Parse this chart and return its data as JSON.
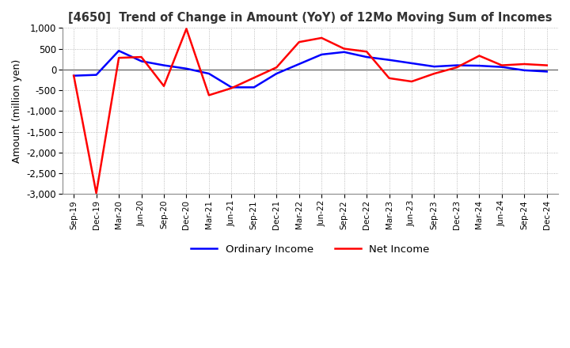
{
  "title": "[4650]  Trend of Change in Amount (YoY) of 12Mo Moving Sum of Incomes",
  "ylabel": "Amount (million yen)",
  "x_labels": [
    "Sep-19",
    "Dec-19",
    "Mar-20",
    "Jun-20",
    "Sep-20",
    "Dec-20",
    "Mar-21",
    "Jun-21",
    "Sep-21",
    "Dec-21",
    "Mar-22",
    "Jun-22",
    "Sep-22",
    "Dec-22",
    "Mar-23",
    "Jun-23",
    "Sep-23",
    "Dec-23",
    "Mar-24",
    "Jun-24",
    "Sep-24",
    "Dec-24"
  ],
  "ordinary_income": [
    -150,
    -130,
    450,
    200,
    100,
    20,
    -100,
    -430,
    -430,
    -100,
    130,
    360,
    420,
    300,
    230,
    150,
    70,
    100,
    90,
    60,
    -20,
    -50
  ],
  "net_income": [
    -150,
    -2980,
    280,
    300,
    -400,
    980,
    -620,
    -450,
    -200,
    50,
    660,
    760,
    500,
    430,
    -210,
    -290,
    -100,
    50,
    330,
    100,
    130,
    100
  ],
  "ylim": [
    -3000,
    1000
  ],
  "yticks": [
    1000,
    500,
    0,
    -500,
    -1000,
    -1500,
    -2000,
    -2500,
    -3000
  ],
  "ordinary_color": "#0000ff",
  "net_color": "#ff0000",
  "grid_color": "#aaaaaa",
  "plot_bg_color": "#ffffff",
  "legend_ordinary": "Ordinary Income",
  "legend_net": "Net Income"
}
